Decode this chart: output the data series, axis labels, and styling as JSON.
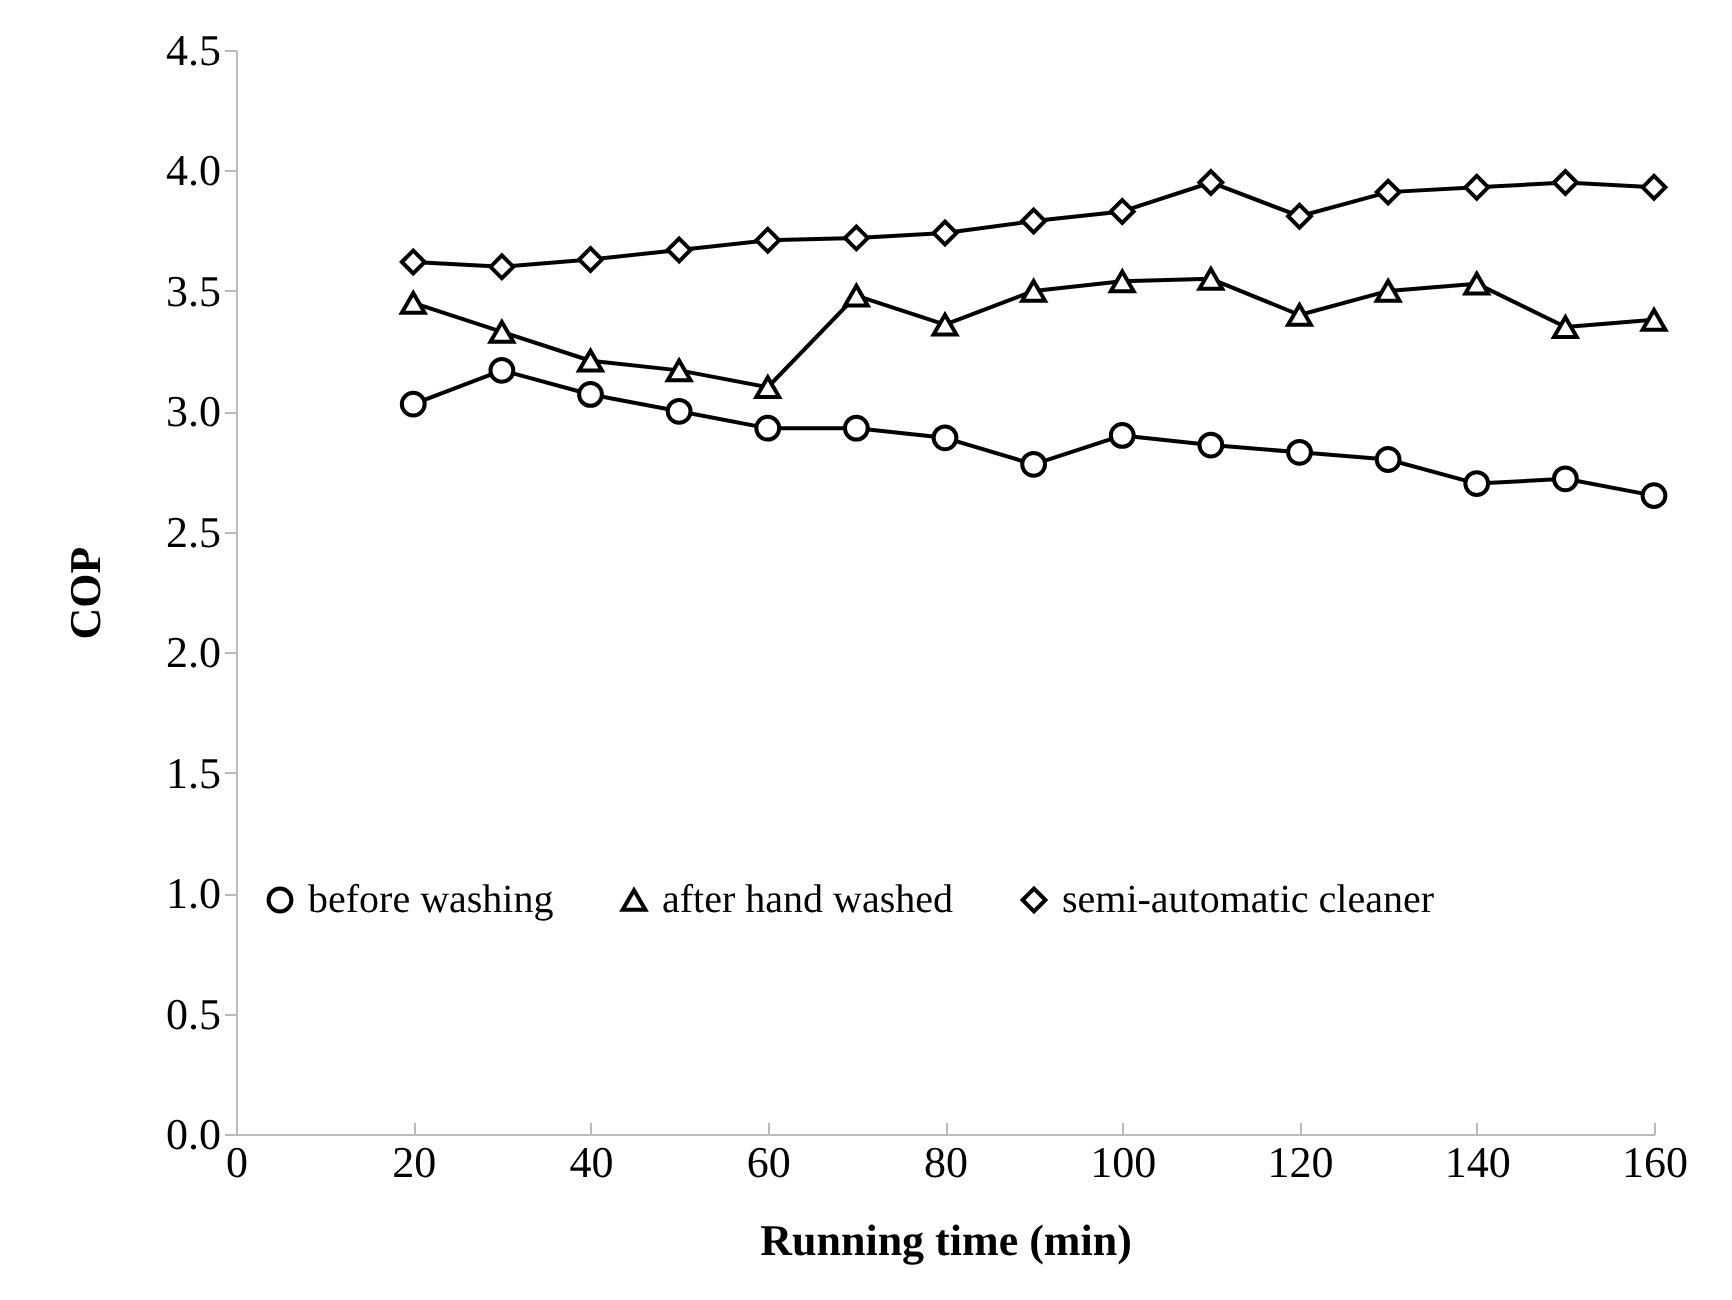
{
  "chart_data": {
    "type": "line",
    "xlabel": "Running time (min)",
    "ylabel": "COP",
    "x": [
      20,
      30,
      40,
      50,
      60,
      70,
      80,
      90,
      100,
      110,
      120,
      130,
      140,
      150,
      160
    ],
    "series": [
      {
        "name": "before washing",
        "color": "#000000",
        "marker": "circle",
        "values": [
          3.03,
          3.17,
          3.07,
          3.0,
          2.93,
          2.93,
          2.89,
          2.78,
          2.9,
          2.86,
          2.83,
          2.8,
          2.7,
          2.72,
          2.65
        ]
      },
      {
        "name": "after hand washed",
        "color": "#000000",
        "marker": "triangle",
        "values": [
          3.45,
          3.33,
          3.21,
          3.17,
          3.1,
          3.48,
          3.36,
          3.5,
          3.54,
          3.55,
          3.4,
          3.5,
          3.53,
          3.35,
          3.38
        ]
      },
      {
        "name": "semi-automatic cleaner",
        "color": "#000000",
        "marker": "diamond",
        "values": [
          3.62,
          3.6,
          3.63,
          3.67,
          3.71,
          3.72,
          3.74,
          3.79,
          3.83,
          3.95,
          3.81,
          3.91,
          3.93,
          3.95,
          3.93
        ]
      }
    ],
    "xlim": [
      0,
      160
    ],
    "xticks": [
      0,
      20,
      40,
      60,
      80,
      100,
      120,
      140,
      160
    ],
    "ylim": [
      0,
      4.5
    ],
    "yticks": [
      {
        "value": 0,
        "label": "0.0"
      },
      0.5,
      {
        "value": 1,
        "label": "1.0"
      },
      1.5,
      {
        "value": 2,
        "label": "2.0"
      },
      2.5,
      {
        "value": 3,
        "label": "3.0"
      },
      3.5,
      {
        "value": 4,
        "label": "4.0"
      },
      4.5
    ],
    "grid": false,
    "legend": "bottom left",
    "line_style": "solid"
  }
}
